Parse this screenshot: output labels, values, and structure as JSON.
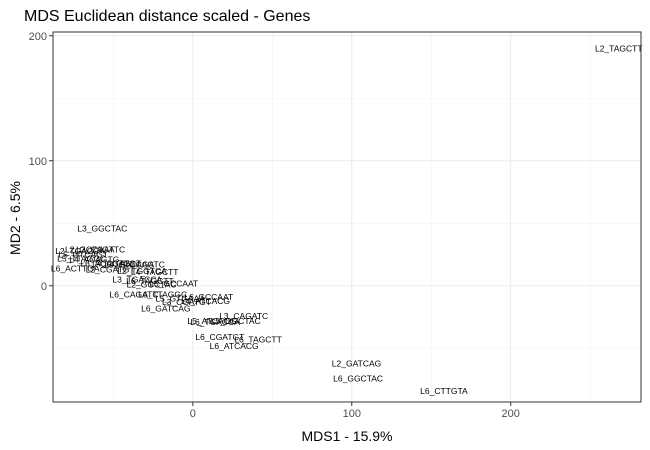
{
  "chart_data": {
    "type": "scatter",
    "title": "MDS Euclidean distance scaled - Genes",
    "xlabel": "MDS1 - 15.9%",
    "ylabel": "MD2 - 6.5%",
    "xlim": [
      -88,
      282
    ],
    "ylim": [
      -93,
      203
    ],
    "x_ticks": [
      0,
      100,
      200
    ],
    "y_ticks": [
      0,
      100,
      200
    ],
    "x_tick_labels": [
      "0",
      "100",
      "200"
    ],
    "y_tick_labels": [
      "0",
      "100",
      "200"
    ],
    "grid": true,
    "legend": "none",
    "points": [
      {
        "label": "L2_TAGCTT",
        "x": 268,
        "y": 190
      },
      {
        "label": "L3_GGCTAC",
        "x": -57,
        "y": 46
      },
      {
        "label": "L2_TGACCA",
        "x": -71,
        "y": 28
      },
      {
        "label": "L2_GCCAAT",
        "x": -65,
        "y": 29
      },
      {
        "label": "L2_CAGATC",
        "x": -58,
        "y": 29
      },
      {
        "label": "L5_GTCAGT",
        "x": -69,
        "y": 25
      },
      {
        "label": "L5_TTAGGC",
        "x": -70,
        "y": 22
      },
      {
        "label": "L4_ACAGTG",
        "x": -62,
        "y": 21
      },
      {
        "label": "L6_ACAGTG",
        "x": -55,
        "y": 18
      },
      {
        "label": "L4_CGATGT",
        "x": -48,
        "y": 18
      },
      {
        "label": "L4_GATCAG",
        "x": -40,
        "y": 17
      },
      {
        "label": "L5_CAGATC",
        "x": -33,
        "y": 17
      },
      {
        "label": "L6_ACTTGA",
        "x": -74,
        "y": 14
      },
      {
        "label": "L2_CGATGT",
        "x": -52,
        "y": 13
      },
      {
        "label": "L2_TGGTCA",
        "x": -32,
        "y": 12
      },
      {
        "label": "L4_TAGCTT",
        "x": -24,
        "y": 11
      },
      {
        "label": "L3_TGACCA",
        "x": -35,
        "y": 5
      },
      {
        "label": "L6_TAGCTT",
        "x": -27,
        "y": 4
      },
      {
        "label": "L5_GCCAAT",
        "x": -12,
        "y": 2
      },
      {
        "label": "L2_GGCTAC",
        "x": -26,
        "y": 1
      },
      {
        "label": "L6_CAGATC",
        "x": -37,
        "y": -7
      },
      {
        "label": "L6_TTAGGC",
        "x": -19,
        "y": -7
      },
      {
        "label": "L5_GTGAAA",
        "x": -8,
        "y": -10
      },
      {
        "label": "L6_GCCAAT",
        "x": 10,
        "y": -9
      },
      {
        "label": "L3_CGATGT",
        "x": -4,
        "y": -13
      },
      {
        "label": "L4_ATCACG",
        "x": 8,
        "y": -12
      },
      {
        "label": "L6_GATCAG",
        "x": -17,
        "y": -18
      },
      {
        "label": "L3_CAGATC",
        "x": 32,
        "y": -24
      },
      {
        "label": "L5_ATCACG",
        "x": 12,
        "y": -28
      },
      {
        "label": "L5_GGCTAC",
        "x": 27,
        "y": -28
      },
      {
        "label": "L6_TGACCA",
        "x": 14,
        "y": -29
      },
      {
        "label": "L6_CGATGT",
        "x": 17,
        "y": -41
      },
      {
        "label": "L6_TAGCTT",
        "x": 41,
        "y": -43
      },
      {
        "label": "L6_ATCACG",
        "x": 26,
        "y": -48
      },
      {
        "label": "L2_GATCAG",
        "x": 103,
        "y": -62
      },
      {
        "label": "L6_GGCTAC",
        "x": 104,
        "y": -74
      },
      {
        "label": "L6_CTTGTA",
        "x": 158,
        "y": -84
      }
    ]
  }
}
